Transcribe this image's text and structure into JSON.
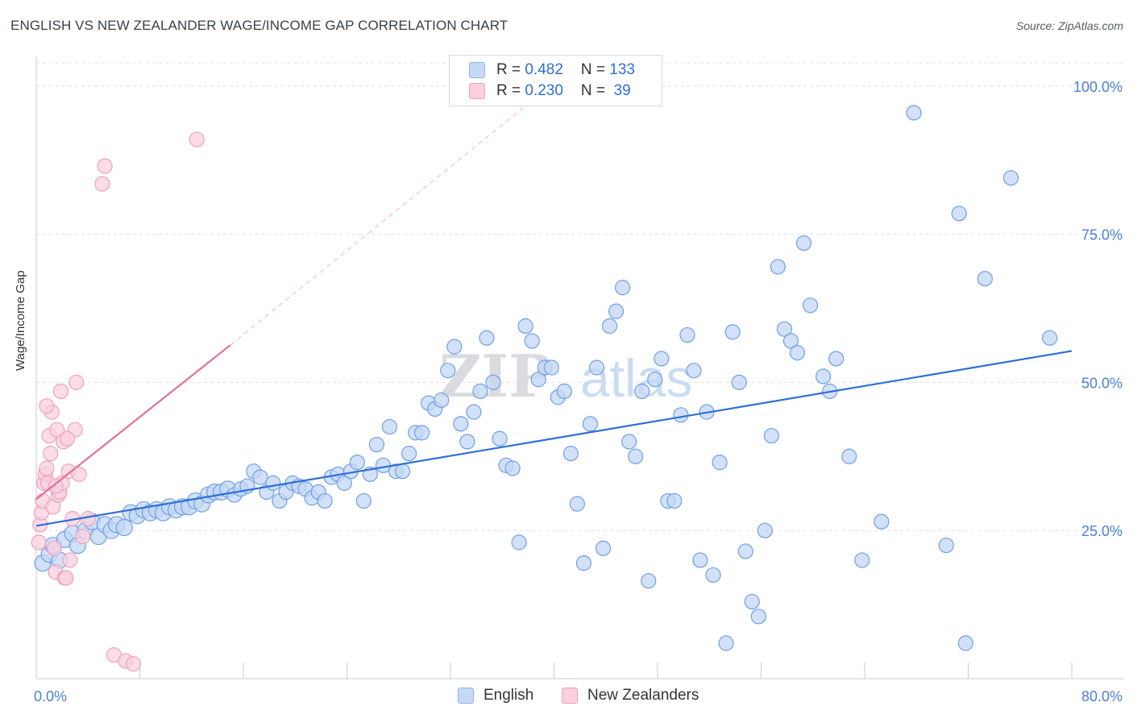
{
  "header": {
    "title": "ENGLISH VS NEW ZEALANDER WAGE/INCOME GAP CORRELATION CHART",
    "source": "Source: ZipAtlas.com"
  },
  "legend_box": {
    "rows": [
      {
        "r_label": "R = ",
        "r_value": "0.482",
        "n_label": "N = ",
        "n_value": "133",
        "color": "#8fb4ea",
        "fill": "#c5d9f5"
      },
      {
        "r_label": "R = ",
        "r_value": "0.230",
        "n_label": "N = ",
        "n_value": " 39",
        "color": "#f0a0bc",
        "fill": "#fad0df"
      }
    ]
  },
  "bottom_legend": {
    "english": "English",
    "new_zealanders": "New Zealanders"
  },
  "watermark": {
    "zip": "ZIP",
    "atlas": "atlas"
  },
  "chart_data": {
    "type": "scatter",
    "title": "ENGLISH VS NEW ZEALANDER WAGE/INCOME GAP CORRELATION CHART",
    "xlabel": "",
    "ylabel": "Wage/Income Gap",
    "xlim": [
      0,
      80
    ],
    "ylim": [
      0,
      105
    ],
    "x_tick_labels": [
      "0.0%",
      "80.0%"
    ],
    "y_ticks": [
      25,
      50,
      75,
      100
    ],
    "y_tick_labels": [
      "25.0%",
      "50.0%",
      "75.0%",
      "100.0%"
    ],
    "grid": true,
    "legend_position": "top-center",
    "series": [
      {
        "name": "English",
        "color": "#6f9fe6",
        "fill": "#c3d7f4",
        "trend": {
          "x": [
            0,
            80
          ],
          "y": [
            25.8,
            55.3
          ],
          "color": "#2f6fd6"
        },
        "points": [
          [
            0.5,
            19.5
          ],
          [
            1.0,
            21
          ],
          [
            1.3,
            22.5
          ],
          [
            1.8,
            20
          ],
          [
            2.2,
            23.5
          ],
          [
            2.8,
            24.5
          ],
          [
            3.2,
            22.5
          ],
          [
            3.8,
            25
          ],
          [
            4.3,
            26.5
          ],
          [
            4.8,
            24
          ],
          [
            5.3,
            26
          ],
          [
            5.8,
            25
          ],
          [
            6.2,
            26
          ],
          [
            6.8,
            25.5
          ],
          [
            7.3,
            28
          ],
          [
            7.8,
            27.5
          ],
          [
            8.3,
            28.5
          ],
          [
            8.8,
            28
          ],
          [
            9.3,
            28.5
          ],
          [
            9.8,
            28
          ],
          [
            10.3,
            29
          ],
          [
            10.8,
            28.5
          ],
          [
            11.3,
            29
          ],
          [
            11.8,
            29
          ],
          [
            12.3,
            30
          ],
          [
            12.8,
            29.5
          ],
          [
            13.3,
            31
          ],
          [
            13.8,
            31.5
          ],
          [
            14.3,
            31.5
          ],
          [
            14.8,
            32
          ],
          [
            15.3,
            31
          ],
          [
            15.8,
            32
          ],
          [
            16.3,
            32.5
          ],
          [
            16.8,
            35
          ],
          [
            17.3,
            34
          ],
          [
            17.8,
            31.5
          ],
          [
            18.3,
            33
          ],
          [
            18.8,
            30
          ],
          [
            19.3,
            31.5
          ],
          [
            19.8,
            33
          ],
          [
            20.3,
            32.5
          ],
          [
            20.8,
            32
          ],
          [
            21.3,
            30.5
          ],
          [
            21.8,
            31.5
          ],
          [
            22.3,
            30
          ],
          [
            22.8,
            34
          ],
          [
            23.3,
            34.5
          ],
          [
            23.8,
            33
          ],
          [
            24.3,
            35
          ],
          [
            24.8,
            36.5
          ],
          [
            25.3,
            30
          ],
          [
            25.8,
            34.5
          ],
          [
            26.3,
            39.5
          ],
          [
            26.8,
            36
          ],
          [
            27.3,
            42.5
          ],
          [
            27.8,
            35
          ],
          [
            28.3,
            35
          ],
          [
            28.8,
            38
          ],
          [
            29.3,
            41.5
          ],
          [
            29.8,
            41.5
          ],
          [
            30.3,
            46.5
          ],
          [
            30.8,
            45.5
          ],
          [
            31.3,
            47
          ],
          [
            31.8,
            52
          ],
          [
            32.3,
            56
          ],
          [
            32.8,
            43
          ],
          [
            33.3,
            40
          ],
          [
            33.8,
            45
          ],
          [
            34.3,
            48.5
          ],
          [
            34.8,
            57.5
          ],
          [
            35.3,
            50
          ],
          [
            35.8,
            40.5
          ],
          [
            36.3,
            36
          ],
          [
            36.8,
            35.5
          ],
          [
            37.3,
            23
          ],
          [
            37.8,
            59.5
          ],
          [
            38.3,
            57
          ],
          [
            38.8,
            50.5
          ],
          [
            39.3,
            52.5
          ],
          [
            39.8,
            52.5
          ],
          [
            40.3,
            47.5
          ],
          [
            40.8,
            48.5
          ],
          [
            41.3,
            38
          ],
          [
            41.8,
            29.5
          ],
          [
            42.3,
            19.5
          ],
          [
            42.8,
            43
          ],
          [
            43.3,
            52.5
          ],
          [
            43.8,
            22
          ],
          [
            44.3,
            59.5
          ],
          [
            44.8,
            62
          ],
          [
            45.3,
            66
          ],
          [
            45.8,
            40
          ],
          [
            46.3,
            37.5
          ],
          [
            46.8,
            48.5
          ],
          [
            47.3,
            16.5
          ],
          [
            47.8,
            50.5
          ],
          [
            48.3,
            54
          ],
          [
            48.8,
            30
          ],
          [
            49.3,
            30
          ],
          [
            49.8,
            44.5
          ],
          [
            50.3,
            58
          ],
          [
            50.8,
            52
          ],
          [
            51.3,
            20
          ],
          [
            51.8,
            45
          ],
          [
            52.3,
            17.5
          ],
          [
            52.8,
            36.5
          ],
          [
            53.3,
            6
          ],
          [
            53.8,
            58.5
          ],
          [
            54.3,
            50
          ],
          [
            54.8,
            21.5
          ],
          [
            55.3,
            13
          ],
          [
            55.8,
            10.5
          ],
          [
            56.3,
            25
          ],
          [
            56.8,
            41
          ],
          [
            57.3,
            69.5
          ],
          [
            57.8,
            59
          ],
          [
            58.3,
            57
          ],
          [
            58.8,
            55
          ],
          [
            59.3,
            73.5
          ],
          [
            59.8,
            63
          ],
          [
            60.8,
            51
          ],
          [
            61.3,
            48.5
          ],
          [
            61.8,
            54
          ],
          [
            62.8,
            37.5
          ],
          [
            63.8,
            20
          ],
          [
            65.3,
            26.5
          ],
          [
            67.8,
            95.5
          ],
          [
            70.3,
            22.5
          ],
          [
            71.3,
            78.5
          ],
          [
            71.8,
            6
          ],
          [
            73.3,
            67.5
          ],
          [
            75.3,
            84.5
          ],
          [
            78.3,
            57.5
          ]
        ]
      },
      {
        "name": "New Zealanders",
        "color": "#f0a0bc",
        "fill": "#fad0df",
        "trend": {
          "x": [
            0,
            15
          ],
          "y": [
            30.3,
            56.3
          ],
          "color": "#e07098",
          "extended_dashed_to": [
            38,
            97
          ]
        },
        "points": [
          [
            0.2,
            23
          ],
          [
            0.3,
            26
          ],
          [
            0.4,
            28
          ],
          [
            0.5,
            30
          ],
          [
            0.6,
            33
          ],
          [
            0.7,
            34.5
          ],
          [
            0.8,
            35.5
          ],
          [
            0.9,
            33
          ],
          [
            1.0,
            41
          ],
          [
            1.1,
            38
          ],
          [
            1.2,
            45
          ],
          [
            1.3,
            29
          ],
          [
            1.4,
            22
          ],
          [
            1.5,
            18
          ],
          [
            1.6,
            42
          ],
          [
            1.7,
            31
          ],
          [
            1.8,
            31.5
          ],
          [
            1.9,
            48.5
          ],
          [
            2.0,
            33
          ],
          [
            2.1,
            40
          ],
          [
            2.2,
            17
          ],
          [
            2.3,
            17
          ],
          [
            2.5,
            35
          ],
          [
            2.6,
            20
          ],
          [
            2.8,
            27
          ],
          [
            3.0,
            42
          ],
          [
            3.1,
            50
          ],
          [
            3.3,
            34.5
          ],
          [
            3.6,
            24
          ],
          [
            4.0,
            27
          ],
          [
            5.1,
            83.5
          ],
          [
            5.3,
            86.5
          ],
          [
            6.0,
            4
          ],
          [
            6.9,
            3
          ],
          [
            7.5,
            2.5
          ],
          [
            12.4,
            91
          ],
          [
            0.8,
            46
          ],
          [
            1.5,
            32.5
          ],
          [
            2.4,
            40.5
          ]
        ]
      }
    ]
  }
}
